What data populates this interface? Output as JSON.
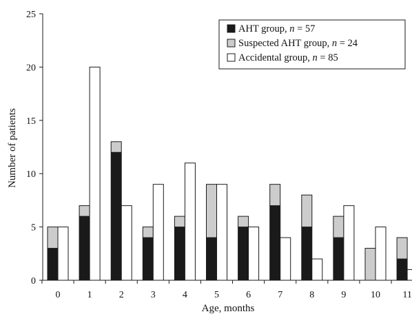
{
  "chart_data": {
    "type": "bar",
    "layout": "grouped-stacked",
    "xlabel": "Age, months",
    "ylabel": "Number of patients",
    "ylim": [
      0,
      25
    ],
    "yticks": [
      0,
      5,
      10,
      15,
      20,
      25
    ],
    "grid": false,
    "legend_position": "top-right",
    "categories": [
      "0",
      "1",
      "2",
      "3",
      "4",
      "5",
      "6",
      "7",
      "8",
      "9",
      "10",
      "11"
    ],
    "series": [
      {
        "name": "AHT group, n = 57",
        "stack": "suspected-aht",
        "color": "#1a1a1a",
        "values": [
          3,
          6,
          12,
          4,
          5,
          4,
          5,
          7,
          5,
          4,
          0,
          2
        ]
      },
      {
        "name": "Suspected AHT group, n = 24",
        "stack": "suspected-aht",
        "color": "#cccccc",
        "values": [
          2,
          1,
          1,
          1,
          1,
          5,
          1,
          2,
          3,
          2,
          3,
          2
        ]
      },
      {
        "name": "Accidental group, n = 85",
        "stack": "accidental",
        "color": "#ffffff",
        "values": [
          5,
          20,
          7,
          9,
          11,
          9,
          5,
          4,
          2,
          7,
          5,
          1
        ]
      }
    ],
    "legend": [
      {
        "prefix": "AHT group, ",
        "italic": "n",
        "suffix": " = 57",
        "color": "#1a1a1a"
      },
      {
        "prefix": "Suspected AHT group, ",
        "italic": "n",
        "suffix": " = 24",
        "color": "#cccccc"
      },
      {
        "prefix": "Accidental group, ",
        "italic": "n",
        "suffix": " = 85",
        "color": "#ffffff"
      }
    ]
  }
}
